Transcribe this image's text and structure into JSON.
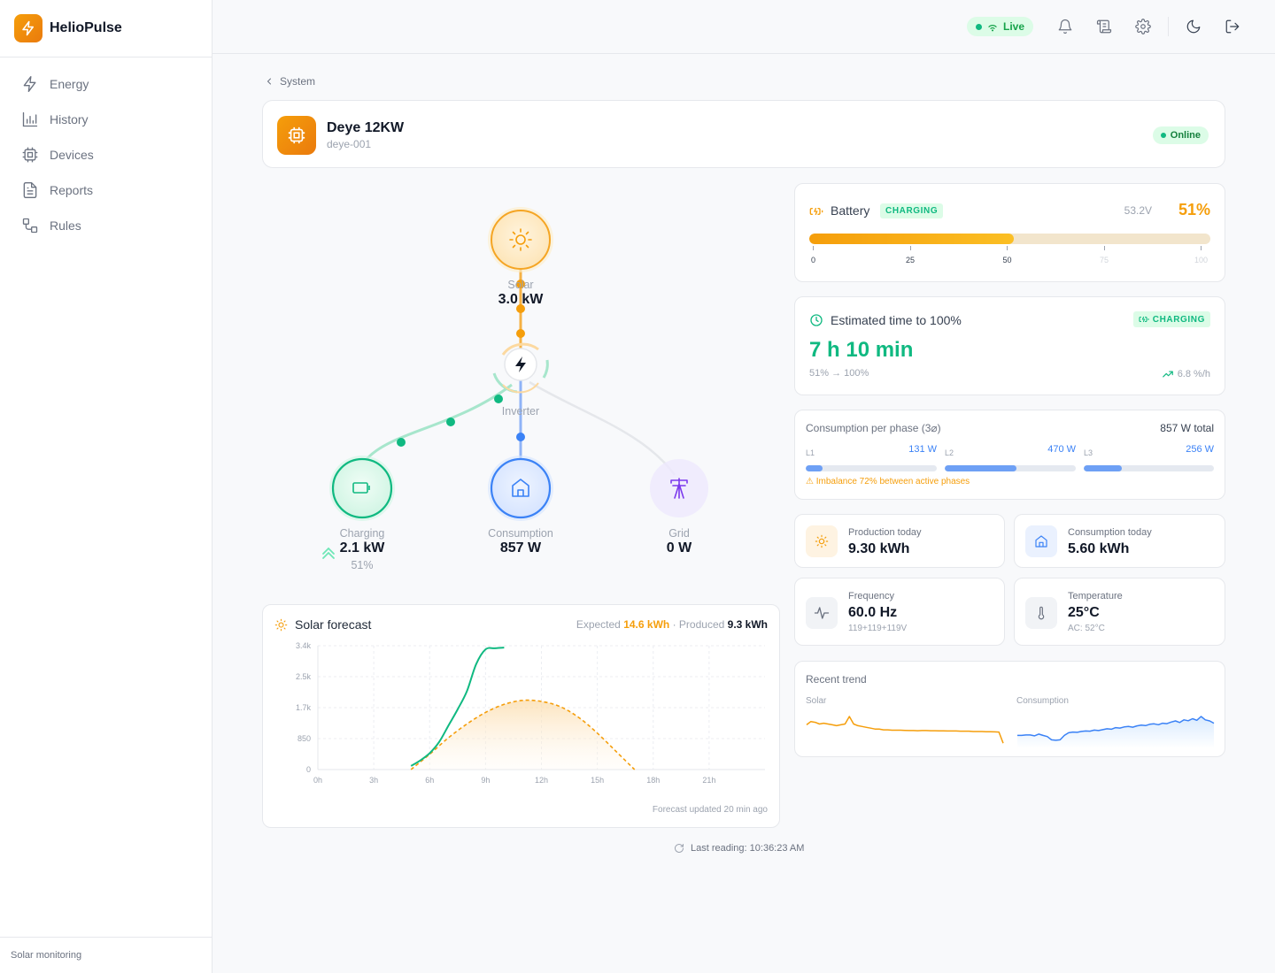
{
  "app": {
    "name": "HelioPulse",
    "footer": "Solar monitoring"
  },
  "nav": [
    {
      "label": "Energy",
      "icon": "lightning-icon"
    },
    {
      "label": "History",
      "icon": "bar-chart-icon"
    },
    {
      "label": "Devices",
      "icon": "chip-icon"
    },
    {
      "label": "Reports",
      "icon": "document-icon"
    },
    {
      "label": "Rules",
      "icon": "rules-icon"
    }
  ],
  "topbar": {
    "live_label": "Live"
  },
  "breadcrumb": {
    "label": "System"
  },
  "device": {
    "name": "Deye 12KW",
    "id": "deye-001",
    "status": "Online"
  },
  "flow": {
    "solar": {
      "label": "Solar",
      "value": "3.0 kW"
    },
    "inverter": {
      "label": "Inverter"
    },
    "battery": {
      "label": "Charging",
      "value": "2.1 kW",
      "sub": "51%"
    },
    "consumption": {
      "label": "Consumption",
      "value": "857 W"
    },
    "grid": {
      "label": "Grid",
      "value": "0 W"
    }
  },
  "battery": {
    "title": "Battery",
    "badge": "CHARGING",
    "voltage": "53.2V",
    "percent_label": "51%",
    "level": 0.51,
    "ticks": [
      "0",
      "25",
      "50",
      "75",
      "100"
    ]
  },
  "eta": {
    "title": "Estimated time to 100%",
    "badge": "CHARGING",
    "value": "7 h 10 min",
    "range": "51% → 100%",
    "rate": "6.8 %/h"
  },
  "phases": {
    "title": "Consumption per phase (3⌀)",
    "total": "857 W total",
    "items": [
      {
        "name": "L1",
        "value": "131 W",
        "level": 0.131
      },
      {
        "name": "L2",
        "value": "470 W",
        "level": 0.55
      },
      {
        "name": "L3",
        "value": "256 W",
        "level": 0.29
      }
    ],
    "warning": "⚠ Imbalance 72% between active phases"
  },
  "stats": {
    "production": {
      "label": "Production today",
      "value": "9.30 kWh"
    },
    "consumption": {
      "label": "Consumption today",
      "value": "5.60 kWh"
    },
    "frequency": {
      "label": "Frequency",
      "value": "60.0 Hz",
      "sub": "119+119+119V"
    },
    "temperature": {
      "label": "Temperature",
      "value": "25°C",
      "sub": "AC: 52°C"
    }
  },
  "trend": {
    "title": "Recent trend",
    "solar_label": "Solar",
    "consumption_label": "Consumption"
  },
  "forecast": {
    "title": "Solar forecast",
    "expected_label": "Expected",
    "expected_value": "14.6 kWh",
    "sep": "·",
    "produced_label": "Produced",
    "produced_value": "9.3 kWh",
    "footer": "Forecast updated 20 min ago"
  },
  "last_reading": "Last reading: 10:36:23 AM",
  "colors": {
    "accent": "#f59e0b",
    "green": "#10b981",
    "blue": "#3b82f6",
    "purple": "#8b5cf6"
  },
  "chart_data": {
    "type": "line",
    "xlabel": "",
    "ylabel": "",
    "xlim": [
      0,
      24
    ],
    "ylim": [
      0,
      3400
    ],
    "x_ticks": [
      0,
      3,
      6,
      9,
      12,
      15,
      18,
      21
    ],
    "x_tick_labels": [
      "0h",
      "3h",
      "6h",
      "9h",
      "12h",
      "15h",
      "18h",
      "21h"
    ],
    "y_ticks": [
      0,
      850,
      1700,
      2550,
      3400
    ],
    "y_tick_labels": [
      "0",
      "850",
      "1.7k",
      "2.5k",
      "3.4k"
    ],
    "grid": true,
    "series": [
      {
        "name": "Produced",
        "style": "solid",
        "color": "#10b981",
        "x": [
          5.0,
          5.5,
          6.0,
          6.5,
          7.0,
          7.5,
          8.0,
          8.5,
          9.0,
          9.5,
          10.0
        ],
        "y": [
          100,
          250,
          450,
          750,
          1200,
          1650,
          2150,
          2900,
          3300,
          3330,
          3350
        ]
      },
      {
        "name": "Expected",
        "style": "dashed",
        "color": "#f59e0b",
        "x": [
          5.0,
          6.0,
          7.0,
          8.0,
          9.0,
          10.0,
          11.0,
          12.0,
          13.0,
          14.0,
          15.0,
          16.0,
          17.0
        ],
        "y": [
          0,
          420,
          870,
          1250,
          1570,
          1790,
          1900,
          1870,
          1730,
          1430,
          1000,
          500,
          0
        ]
      }
    ]
  },
  "trend_data": {
    "solar": [
      1300,
      1500,
      1450,
      1350,
      1400,
      1350,
      1300,
      1250,
      1300,
      1350,
      1800,
      1350,
      1250,
      1200,
      1150,
      1100,
      1050,
      1050,
      1000,
      1000,
      980,
      980,
      980,
      970,
      960,
      960,
      950,
      960,
      960,
      950,
      950,
      940,
      940,
      930,
      930,
      930,
      920,
      920,
      920,
      900,
      900,
      900,
      890,
      890,
      880,
      870,
      200
    ],
    "consumption": [
      500,
      500,
      520,
      520,
      480,
      560,
      500,
      450,
      300,
      280,
      300,
      500,
      620,
      650,
      640,
      680,
      700,
      690,
      740,
      720,
      760,
      800,
      780,
      850,
      830,
      880,
      900,
      870,
      930,
      960,
      940,
      1000,
      1020,
      980,
      1050,
      1030,
      1100,
      1150,
      1080,
      1200,
      1160,
      1250,
      1180,
      1350,
      1200,
      1150,
      1050
    ]
  }
}
